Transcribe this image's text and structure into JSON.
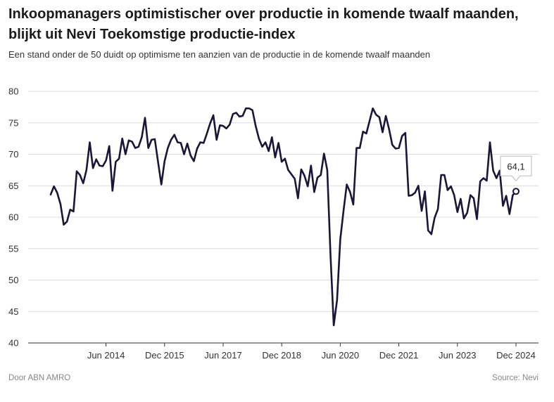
{
  "header": {
    "title": "Inkoopmanagers optimistischer over productie in komende twaalf maanden, blijkt uit Nevi Toekomstige productie-index",
    "subtitle": "Een stand onder de 50 duidt op optimisme ten aanzien van de productie in de komende twaalf maanden"
  },
  "footer": {
    "credit": "Door ABN AMRO",
    "source": "Source:  Nevi"
  },
  "chart_data": {
    "type": "line",
    "title": "Inkoopmanagers optimistischer over productie in komende twaalf maanden, blijkt uit Nevi Toekomstige productie-index",
    "subtitle": "Een stand onder de 50 duidt op optimisme ten aanzien van de productie in de komende twaalf maanden",
    "xlabel": "",
    "ylabel": "",
    "ylim": [
      40,
      80
    ],
    "yticks": [
      40,
      45,
      50,
      55,
      60,
      65,
      70,
      75,
      80
    ],
    "xlim": [
      "2013-01",
      "2024-12"
    ],
    "xticks": [
      {
        "label": "Jun 2014",
        "date": "2014-06"
      },
      {
        "label": "Dec 2015",
        "date": "2015-12"
      },
      {
        "label": "Jun 2017",
        "date": "2017-06"
      },
      {
        "label": "Dec 2018",
        "date": "2018-12"
      },
      {
        "label": "Jun 2020",
        "date": "2020-06"
      },
      {
        "label": "Dec 2021",
        "date": "2021-12"
      },
      {
        "label": "Jun 2023",
        "date": "2023-06"
      },
      {
        "label": "Dec 2024",
        "date": "2024-12"
      }
    ],
    "grid": true,
    "line_color": "#1b1537",
    "annotation": {
      "label": "64,1",
      "date": "2024-12",
      "value": 64.1
    },
    "series": [
      {
        "x": [
          "2013-01",
          "2013-02",
          "2013-03",
          "2013-04",
          "2013-05",
          "2013-06",
          "2013-07",
          "2013-08",
          "2013-09",
          "2013-10",
          "2013-11",
          "2013-12",
          "2014-01",
          "2014-02",
          "2014-03",
          "2014-04",
          "2014-05",
          "2014-06",
          "2014-07",
          "2014-08",
          "2014-09",
          "2014-10",
          "2014-11",
          "2014-12",
          "2015-01",
          "2015-02",
          "2015-03",
          "2015-04",
          "2015-05",
          "2015-06",
          "2015-07",
          "2015-08",
          "2015-09",
          "2015-10",
          "2015-11",
          "2015-12",
          "2016-01",
          "2016-02",
          "2016-03",
          "2016-04",
          "2016-05",
          "2016-06",
          "2016-07",
          "2016-08",
          "2016-09",
          "2016-10",
          "2016-11",
          "2016-12",
          "2017-01",
          "2017-02",
          "2017-03",
          "2017-04",
          "2017-05",
          "2017-06",
          "2017-07",
          "2017-08",
          "2017-09",
          "2017-10",
          "2017-11",
          "2017-12",
          "2018-01",
          "2018-02",
          "2018-03",
          "2018-04",
          "2018-05",
          "2018-06",
          "2018-07",
          "2018-08",
          "2018-09",
          "2018-10",
          "2018-11",
          "2018-12",
          "2019-01",
          "2019-02",
          "2019-03",
          "2019-04",
          "2019-05",
          "2019-06",
          "2019-07",
          "2019-08",
          "2019-09",
          "2019-10",
          "2019-11",
          "2019-12",
          "2020-01",
          "2020-02",
          "2020-03",
          "2020-04",
          "2020-05",
          "2020-06",
          "2020-07",
          "2020-08",
          "2020-09",
          "2020-10",
          "2020-11",
          "2020-12",
          "2021-01",
          "2021-02",
          "2021-03",
          "2021-04",
          "2021-05",
          "2021-06",
          "2021-07",
          "2021-08",
          "2021-09",
          "2021-10",
          "2021-11",
          "2021-12",
          "2022-01",
          "2022-02",
          "2022-03",
          "2022-04",
          "2022-05",
          "2022-06",
          "2022-07",
          "2022-08",
          "2022-09",
          "2022-10",
          "2022-11",
          "2022-12",
          "2023-01",
          "2023-02",
          "2023-03",
          "2023-04",
          "2023-05",
          "2023-06",
          "2023-07",
          "2023-08",
          "2023-09",
          "2023-10",
          "2023-11",
          "2023-12",
          "2024-01",
          "2024-02",
          "2024-03",
          "2024-04",
          "2024-05",
          "2024-06",
          "2024-07",
          "2024-08",
          "2024-09",
          "2024-10",
          "2024-11",
          "2024-12"
        ],
        "values": [
          63.6,
          64.9,
          63.9,
          62.1,
          58.8,
          59.3,
          61.2,
          60.9,
          67.3,
          66.7,
          65.4,
          67.5,
          71.9,
          67.8,
          69.2,
          68.2,
          68.1,
          69.0,
          71.3,
          64.2,
          68.8,
          69.3,
          72.5,
          70.0,
          72.2,
          72.0,
          71.0,
          71.2,
          72.7,
          75.8,
          71.0,
          72.3,
          72.4,
          68.8,
          65.2,
          68.9,
          71.0,
          72.3,
          73.1,
          71.9,
          71.8,
          70.0,
          71.7,
          69.8,
          68.9,
          70.9,
          71.9,
          71.8,
          73.3,
          74.9,
          76.2,
          72.3,
          74.6,
          74.5,
          74.1,
          74.7,
          76.4,
          76.6,
          76.0,
          76.1,
          77.3,
          77.3,
          77.0,
          74.5,
          72.5,
          71.2,
          71.9,
          70.5,
          72.7,
          69.5,
          71.8,
          68.8,
          69.3,
          67.5,
          66.8,
          66.1,
          63.0,
          67.6,
          66.6,
          64.9,
          68.2,
          64.0,
          66.3,
          66.7,
          70.1,
          67.5,
          54.0,
          42.8,
          46.8,
          56.5,
          61.0,
          65.2,
          64.0,
          62.0,
          71.0,
          71.0,
          73.6,
          73.3,
          75.3,
          77.3,
          76.3,
          75.9,
          73.5,
          76.1,
          74.0,
          71.5,
          70.9,
          71.0,
          72.9,
          73.4,
          63.4,
          63.5,
          63.9,
          65.0,
          61.0,
          64.1,
          57.9,
          57.3,
          59.9,
          61.3,
          66.7,
          66.7,
          64.3,
          64.9,
          63.5,
          60.8,
          62.9,
          59.8,
          60.7,
          63.5,
          63.0,
          59.7,
          65.7,
          66.2,
          65.8,
          71.9,
          67.4,
          66.2,
          67.4,
          61.8,
          63.4,
          60.5,
          63.5,
          64.1
        ]
      }
    ]
  }
}
